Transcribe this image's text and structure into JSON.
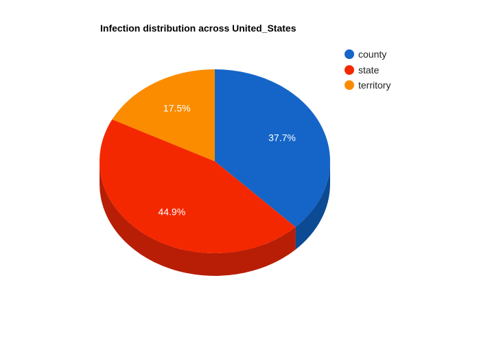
{
  "chart_data": {
    "type": "pie",
    "style": "3d",
    "title": "Infection distribution across United_States",
    "legend_position": "top-right",
    "slices": [
      {
        "label": "county",
        "value": 37.7,
        "display": "37.7%",
        "color": "#1565c8",
        "side_color": "#0d4a94"
      },
      {
        "label": "state",
        "value": 44.9,
        "display": "44.9%",
        "color": "#f42800",
        "side_color": "#b81e06"
      },
      {
        "label": "territory",
        "value": 17.5,
        "display": "17.5%",
        "color": "#fb8c00",
        "side_color": "#c06a00"
      }
    ]
  }
}
